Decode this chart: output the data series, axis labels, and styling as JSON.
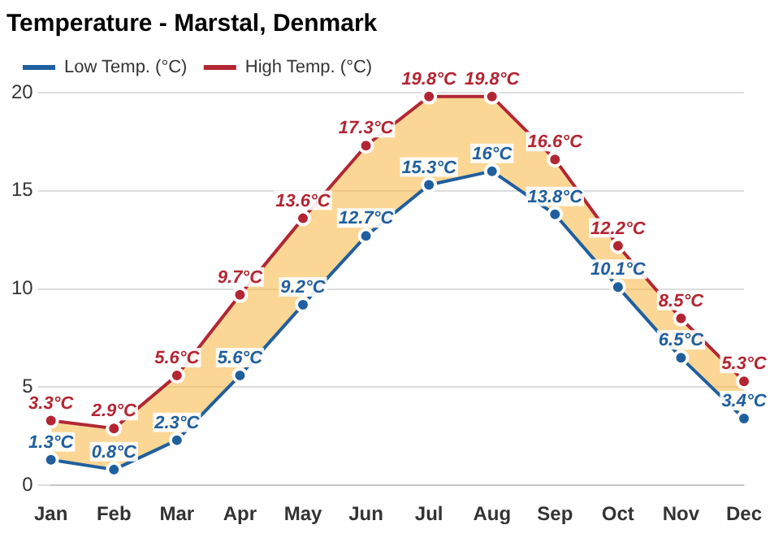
{
  "chart_data": {
    "type": "line",
    "title": "Temperature - Marstal, Denmark",
    "categories": [
      "Jan",
      "Feb",
      "Mar",
      "Apr",
      "May",
      "Jun",
      "Jul",
      "Aug",
      "Sep",
      "Oct",
      "Nov",
      "Dec"
    ],
    "series": [
      {
        "name": "Low Temp. (°C)",
        "color": "#1f5f9e",
        "type": "line",
        "values": [
          1.3,
          0.8,
          2.3,
          5.6,
          9.2,
          12.7,
          15.3,
          16,
          13.8,
          10.1,
          6.5,
          3.4
        ],
        "value_labels": [
          "1.3°C",
          "0.8°C",
          "2.3°C",
          "5.6°C",
          "9.2°C",
          "12.7°C",
          "15.3°C",
          "16°C",
          "13.8°C",
          "10.1°C",
          "6.5°C",
          "3.4°C"
        ]
      },
      {
        "name": "High Temp. (°C)",
        "color": "#b22633",
        "type": "area",
        "values": [
          3.3,
          2.9,
          5.6,
          9.7,
          13.6,
          17.3,
          19.8,
          19.8,
          16.6,
          12.2,
          8.5,
          5.3
        ],
        "value_labels": [
          "3.3°C",
          "2.9°C",
          "5.6°C",
          "9.7°C",
          "13.6°C",
          "17.3°C",
          "19.8°C",
          "19.8°C",
          "16.6°C",
          "12.2°C",
          "8.5°C",
          "5.3°C"
        ]
      }
    ],
    "ylim": [
      0,
      20
    ],
    "yticks": [
      0,
      5,
      10,
      15,
      20
    ],
    "grid": "y",
    "legend": "top left",
    "marker": "circle"
  }
}
